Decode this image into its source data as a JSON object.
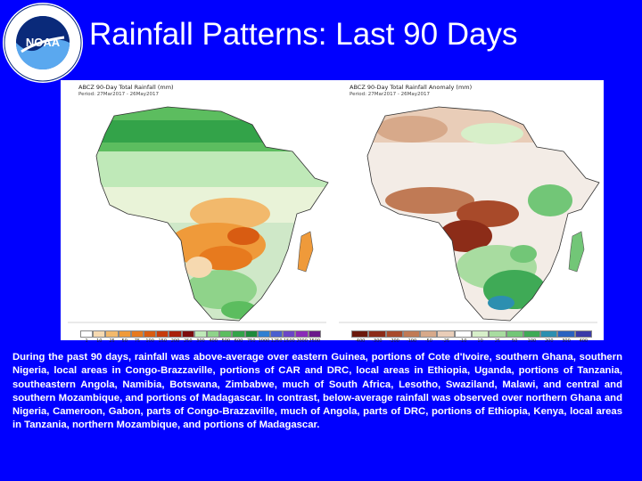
{
  "header": {
    "title": "Rainfall Patterns: Last 90 Days",
    "logo": {
      "icon": "noaa-logo",
      "center_text": "NOAA",
      "ring_text": "NATIONAL OCEANIC AND ATMOSPHERIC ADMINISTRATION · U.S. DEPARTMENT OF COMMERCE"
    }
  },
  "maps": [
    {
      "title": "ABCZ 90-Day Total Rainfall (mm)",
      "period": "Period: 27Mar2017 - 26May2017",
      "legend": {
        "labels": [
          "1",
          "10",
          "25",
          "50",
          "75",
          "100",
          "150",
          "200",
          "250",
          "300",
          "400",
          "500",
          "600",
          "750",
          "1000",
          "1250",
          "1500",
          "2000",
          "2500"
        ],
        "colors": [
          "#ffffff",
          "#f6d9b0",
          "#f2b96c",
          "#ef9a3a",
          "#e77a1e",
          "#d85c12",
          "#c63c0c",
          "#a81f0a",
          "#7c0d0d",
          "#bfe9b8",
          "#8fd38a",
          "#5cbd5f",
          "#33a349",
          "#1e8a3c",
          "#2f7fd1",
          "#4a5fcf",
          "#6b45c7",
          "#8a2cb8",
          "#6a1a8a"
        ]
      }
    },
    {
      "title": "ABCZ 90-Day Total Rainfall Anomaly (mm)",
      "period": "Period: 27Mar2017 - 26May2017",
      "legend": {
        "labels": [
          "-400",
          "-300",
          "-200",
          "-100",
          "-50",
          "-25",
          "-10",
          "10",
          "25",
          "50",
          "100",
          "200",
          "300",
          "400"
        ],
        "colors": [
          "#6b1a0d",
          "#8c2c18",
          "#a84a2a",
          "#c07a55",
          "#d7a98a",
          "#e9cdb8",
          "#ffffff",
          "#d7efc9",
          "#a8dca0",
          "#72c677",
          "#3faa56",
          "#2c8fb0",
          "#2a62c0",
          "#3a3aa8"
        ]
      }
    }
  ],
  "caption": "During the past 90 days, rainfall was above-average over eastern Guinea, portions of Cote d'Ivoire, southern Ghana, southern Nigeria, local areas in Congo-Brazzaville, portions of CAR and DRC, local areas in Ethiopia, Uganda, portions of Tanzania, southeastern Angola, Namibia, Botswana, Zimbabwe, much of South Africa, Lesotho, Swaziland, Malawi, and central and southern Mozambique, and portions of Madagascar. In contrast, below-average rainfall was observed over northern Ghana and Nigeria, Cameroon, Gabon, parts of Congo-Brazzaville, much of Angola, parts of DRC, portions of Ethiopia, Kenya, local areas in Tanzania, northern Mozambique, and portions of Madagascar.",
  "colors": {
    "background": "#0000ff",
    "text": "#ffffff"
  }
}
